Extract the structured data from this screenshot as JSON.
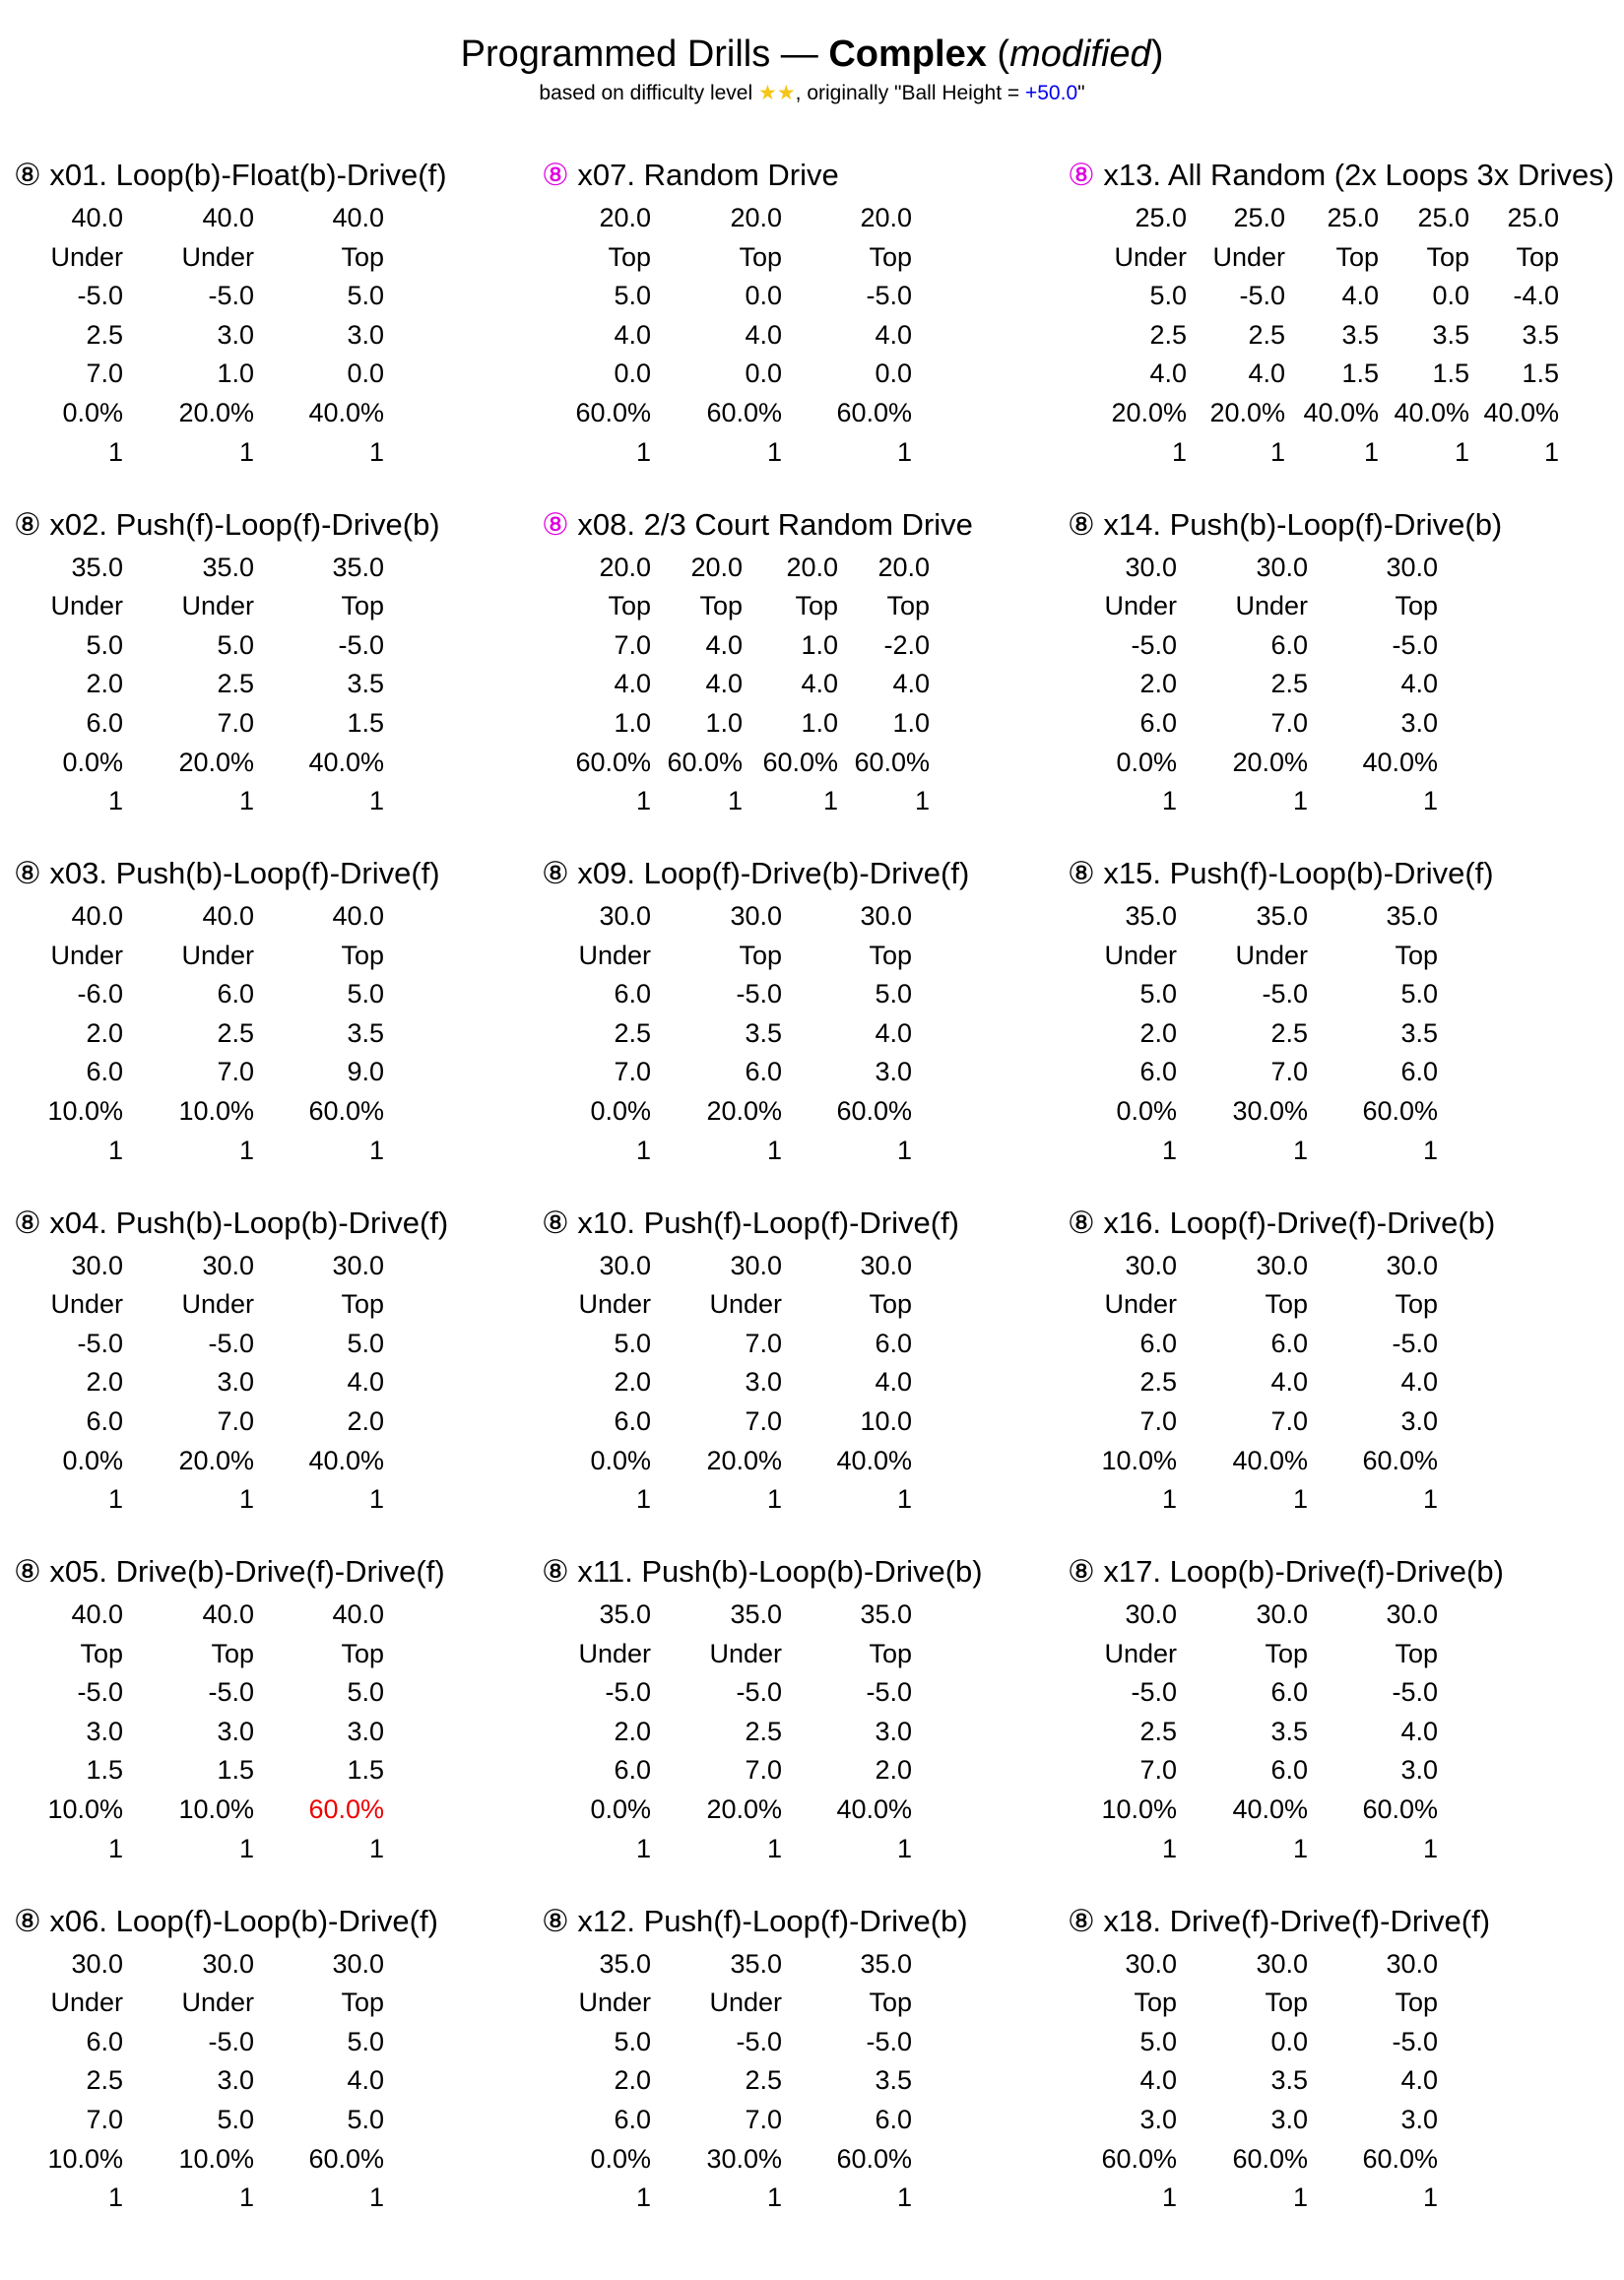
{
  "header": {
    "title_prefix": "Programmed Drills — ",
    "title_bold": "Complex",
    "title_open": " (",
    "title_italic": "modified",
    "title_close": ")",
    "subtitle_prefix": "based on difficulty level ",
    "subtitle_stars": "★★",
    "subtitle_mid": ", originally \"Ball Height = ",
    "subtitle_value": "+50.0",
    "subtitle_end": "\""
  },
  "colors": {
    "magenta_mark": "#e000e0",
    "red_value": "#ee0000",
    "blue_value": "#0000ee",
    "star": "#f5c518"
  },
  "drills": [
    {
      "mark": "⑧",
      "magenta": false,
      "title": "x01. Loop(b)-Float(b)-Drive(f)",
      "rows": [
        [
          "40.0",
          "40.0",
          "40.0"
        ],
        [
          "Under",
          "Under",
          "Top"
        ],
        [
          "-5.0",
          "-5.0",
          "5.0"
        ],
        [
          "2.5",
          "3.0",
          "3.0"
        ],
        [
          "7.0",
          "1.0",
          "0.0"
        ],
        [
          "0.0%",
          "20.0%",
          "40.0%"
        ],
        [
          "1",
          "1",
          "1"
        ]
      ]
    },
    {
      "mark": "⑧",
      "magenta": true,
      "title": "x07. Random Drive",
      "rows": [
        [
          "20.0",
          "20.0",
          "20.0"
        ],
        [
          "Top",
          "Top",
          "Top"
        ],
        [
          "5.0",
          "0.0",
          "-5.0"
        ],
        [
          "4.0",
          "4.0",
          "4.0"
        ],
        [
          "0.0",
          "0.0",
          "0.0"
        ],
        [
          "60.0%",
          "60.0%",
          "60.0%"
        ],
        [
          "1",
          "1",
          "1"
        ]
      ]
    },
    {
      "mark": "⑧",
      "magenta": true,
      "title": "x13. All Random (2x Loops 3x Drives)",
      "rows": [
        [
          "25.0",
          "25.0",
          "25.0",
          "25.0",
          "25.0"
        ],
        [
          "Under",
          "Under",
          "Top",
          "Top",
          "Top"
        ],
        [
          "5.0",
          "-5.0",
          "4.0",
          "0.0",
          "-4.0"
        ],
        [
          "2.5",
          "2.5",
          "3.5",
          "3.5",
          "3.5"
        ],
        [
          "4.0",
          "4.0",
          "1.5",
          "1.5",
          "1.5"
        ],
        [
          "20.0%",
          "20.0%",
          "40.0%",
          "40.0%",
          "40.0%"
        ],
        [
          "1",
          "1",
          "1",
          "1",
          "1"
        ]
      ]
    },
    {
      "mark": "⑧",
      "magenta": false,
      "title": "x02. Push(f)-Loop(f)-Drive(b)",
      "rows": [
        [
          "35.0",
          "35.0",
          "35.0"
        ],
        [
          "Under",
          "Under",
          "Top"
        ],
        [
          "5.0",
          "5.0",
          "-5.0"
        ],
        [
          "2.0",
          "2.5",
          "3.5"
        ],
        [
          "6.0",
          "7.0",
          "1.5"
        ],
        [
          "0.0%",
          "20.0%",
          "40.0%"
        ],
        [
          "1",
          "1",
          "1"
        ]
      ]
    },
    {
      "mark": "⑧",
      "magenta": true,
      "title": "x08. 2/3 Court Random Drive",
      "rows": [
        [
          "20.0",
          "20.0",
          "20.0",
          "20.0"
        ],
        [
          "Top",
          "Top",
          "Top",
          "Top"
        ],
        [
          "7.0",
          "4.0",
          "1.0",
          "-2.0"
        ],
        [
          "4.0",
          "4.0",
          "4.0",
          "4.0"
        ],
        [
          "1.0",
          "1.0",
          "1.0",
          "1.0"
        ],
        [
          "60.0%",
          "60.0%",
          "60.0%",
          "60.0%"
        ],
        [
          "1",
          "1",
          "1",
          "1"
        ]
      ]
    },
    {
      "mark": "⑧",
      "magenta": false,
      "title": "x14. Push(b)-Loop(f)-Drive(b)",
      "rows": [
        [
          "30.0",
          "30.0",
          "30.0"
        ],
        [
          "Under",
          "Under",
          "Top"
        ],
        [
          "-5.0",
          "6.0",
          "-5.0"
        ],
        [
          "2.0",
          "2.5",
          "4.0"
        ],
        [
          "6.0",
          "7.0",
          "3.0"
        ],
        [
          "0.0%",
          "20.0%",
          "40.0%"
        ],
        [
          "1",
          "1",
          "1"
        ]
      ]
    },
    {
      "mark": "⑧",
      "magenta": false,
      "title": "x03. Push(b)-Loop(f)-Drive(f)",
      "rows": [
        [
          "40.0",
          "40.0",
          "40.0"
        ],
        [
          "Under",
          "Under",
          "Top"
        ],
        [
          "-6.0",
          "6.0",
          "5.0"
        ],
        [
          "2.0",
          "2.5",
          "3.5"
        ],
        [
          "6.0",
          "7.0",
          "9.0"
        ],
        [
          "10.0%",
          "10.0%",
          "60.0%"
        ],
        [
          "1",
          "1",
          "1"
        ]
      ]
    },
    {
      "mark": "⑧",
      "magenta": false,
      "title": "x09. Loop(f)-Drive(b)-Drive(f)",
      "rows": [
        [
          "30.0",
          "30.0",
          "30.0"
        ],
        [
          "Under",
          "Top",
          "Top"
        ],
        [
          "6.0",
          "-5.0",
          "5.0"
        ],
        [
          "2.5",
          "3.5",
          "4.0"
        ],
        [
          "7.0",
          "6.0",
          "3.0"
        ],
        [
          "0.0%",
          "20.0%",
          "60.0%"
        ],
        [
          "1",
          "1",
          "1"
        ]
      ]
    },
    {
      "mark": "⑧",
      "magenta": false,
      "title": "x15. Push(f)-Loop(b)-Drive(f)",
      "rows": [
        [
          "35.0",
          "35.0",
          "35.0"
        ],
        [
          "Under",
          "Under",
          "Top"
        ],
        [
          "5.0",
          "-5.0",
          "5.0"
        ],
        [
          "2.0",
          "2.5",
          "3.5"
        ],
        [
          "6.0",
          "7.0",
          "6.0"
        ],
        [
          "0.0%",
          "30.0%",
          "60.0%"
        ],
        [
          "1",
          "1",
          "1"
        ]
      ]
    },
    {
      "mark": "⑧",
      "magenta": false,
      "title": "x04. Push(b)-Loop(b)-Drive(f)",
      "rows": [
        [
          "30.0",
          "30.0",
          "30.0"
        ],
        [
          "Under",
          "Under",
          "Top"
        ],
        [
          "-5.0",
          "-5.0",
          "5.0"
        ],
        [
          "2.0",
          "3.0",
          "4.0"
        ],
        [
          "6.0",
          "7.0",
          "2.0"
        ],
        [
          "0.0%",
          "20.0%",
          "40.0%"
        ],
        [
          "1",
          "1",
          "1"
        ]
      ]
    },
    {
      "mark": "⑧",
      "magenta": false,
      "title": "x10. Push(f)-Loop(f)-Drive(f)",
      "rows": [
        [
          "30.0",
          "30.0",
          "30.0"
        ],
        [
          "Under",
          "Under",
          "Top"
        ],
        [
          "5.0",
          "7.0",
          "6.0"
        ],
        [
          "2.0",
          "3.0",
          "4.0"
        ],
        [
          "6.0",
          "7.0",
          "10.0"
        ],
        [
          "0.0%",
          "20.0%",
          "40.0%"
        ],
        [
          "1",
          "1",
          "1"
        ]
      ]
    },
    {
      "mark": "⑧",
      "magenta": false,
      "title": "x16. Loop(f)-Drive(f)-Drive(b)",
      "rows": [
        [
          "30.0",
          "30.0",
          "30.0"
        ],
        [
          "Under",
          "Top",
          "Top"
        ],
        [
          "6.0",
          "6.0",
          "-5.0"
        ],
        [
          "2.5",
          "4.0",
          "4.0"
        ],
        [
          "7.0",
          "7.0",
          "3.0"
        ],
        [
          "10.0%",
          "40.0%",
          "60.0%"
        ],
        [
          "1",
          "1",
          "1"
        ]
      ]
    },
    {
      "mark": "⑧",
      "magenta": false,
      "title": "x05. Drive(b)-Drive(f)-Drive(f)",
      "rows": [
        [
          "40.0",
          "40.0",
          "40.0"
        ],
        [
          "Top",
          "Top",
          "Top"
        ],
        [
          "-5.0",
          "-5.0",
          "5.0"
        ],
        [
          "3.0",
          "3.0",
          "3.0"
        ],
        [
          "1.5",
          "1.5",
          "1.5"
        ],
        [
          "10.0%",
          "10.0%",
          "60.0%"
        ],
        [
          "1",
          "1",
          "1"
        ]
      ],
      "red": [
        5,
        2
      ]
    },
    {
      "mark": "⑧",
      "magenta": false,
      "title": "x11. Push(b)-Loop(b)-Drive(b)",
      "rows": [
        [
          "35.0",
          "35.0",
          "35.0"
        ],
        [
          "Under",
          "Under",
          "Top"
        ],
        [
          "-5.0",
          "-5.0",
          "-5.0"
        ],
        [
          "2.0",
          "2.5",
          "3.0"
        ],
        [
          "6.0",
          "7.0",
          "2.0"
        ],
        [
          "0.0%",
          "20.0%",
          "40.0%"
        ],
        [
          "1",
          "1",
          "1"
        ]
      ]
    },
    {
      "mark": "⑧",
      "magenta": false,
      "title": "x17. Loop(b)-Drive(f)-Drive(b)",
      "rows": [
        [
          "30.0",
          "30.0",
          "30.0"
        ],
        [
          "Under",
          "Top",
          "Top"
        ],
        [
          "-5.0",
          "6.0",
          "-5.0"
        ],
        [
          "2.5",
          "3.5",
          "4.0"
        ],
        [
          "7.0",
          "6.0",
          "3.0"
        ],
        [
          "10.0%",
          "40.0%",
          "60.0%"
        ],
        [
          "1",
          "1",
          "1"
        ]
      ]
    },
    {
      "mark": "⑧",
      "magenta": false,
      "title": "x06. Loop(f)-Loop(b)-Drive(f)",
      "rows": [
        [
          "30.0",
          "30.0",
          "30.0"
        ],
        [
          "Under",
          "Under",
          "Top"
        ],
        [
          "6.0",
          "-5.0",
          "5.0"
        ],
        [
          "2.5",
          "3.0",
          "4.0"
        ],
        [
          "7.0",
          "5.0",
          "5.0"
        ],
        [
          "10.0%",
          "10.0%",
          "60.0%"
        ],
        [
          "1",
          "1",
          "1"
        ]
      ]
    },
    {
      "mark": "⑧",
      "magenta": false,
      "title": "x12. Push(f)-Loop(f)-Drive(b)",
      "rows": [
        [
          "35.0",
          "35.0",
          "35.0"
        ],
        [
          "Under",
          "Under",
          "Top"
        ],
        [
          "5.0",
          "-5.0",
          "-5.0"
        ],
        [
          "2.0",
          "2.5",
          "3.5"
        ],
        [
          "6.0",
          "7.0",
          "6.0"
        ],
        [
          "0.0%",
          "30.0%",
          "60.0%"
        ],
        [
          "1",
          "1",
          "1"
        ]
      ]
    },
    {
      "mark": "⑧",
      "magenta": false,
      "title": "x18. Drive(f)-Drive(f)-Drive(f)",
      "rows": [
        [
          "30.0",
          "30.0",
          "30.0"
        ],
        [
          "Top",
          "Top",
          "Top"
        ],
        [
          "5.0",
          "0.0",
          "-5.0"
        ],
        [
          "4.0",
          "3.5",
          "4.0"
        ],
        [
          "3.0",
          "3.0",
          "3.0"
        ],
        [
          "60.0%",
          "60.0%",
          "60.0%"
        ],
        [
          "1",
          "1",
          "1"
        ]
      ]
    }
  ]
}
